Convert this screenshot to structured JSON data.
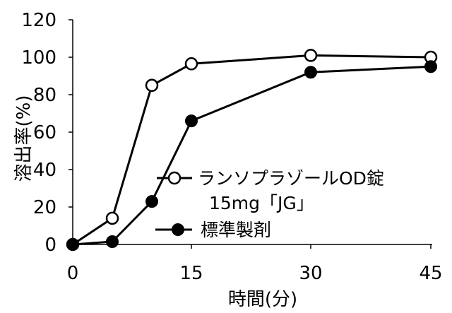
{
  "chart_data": {
    "type": "line",
    "x": [
      0,
      5,
      10,
      15,
      30,
      45
    ],
    "series": [
      {
        "name": "ランソプラゾールOD錠",
        "name_line2": "15mg「JG」",
        "marker": "open-circle",
        "values": [
          0,
          14,
          85,
          96.5,
          101,
          100
        ]
      },
      {
        "name": "標準製剤",
        "marker": "filled-circle",
        "values": [
          0,
          1.5,
          23,
          66,
          92,
          95
        ]
      }
    ],
    "xlabel": "時間(分)",
    "ylabel": "溶出率(%)",
    "xticks": [
      "0",
      "15",
      "30",
      "45"
    ],
    "xtick_values": [
      0,
      15,
      30,
      45
    ],
    "yticks": [
      "0",
      "20",
      "40",
      "60",
      "80",
      "100",
      "120"
    ],
    "ytick_values": [
      0,
      20,
      40,
      60,
      80,
      100,
      120
    ],
    "ylim": [
      0,
      120
    ],
    "xlim": [
      0,
      45
    ],
    "xscale": "category-like piecewise (0-15 compressed, 15-45 evenly spaced)",
    "grid": false,
    "legend_position": "lower-right inside plot",
    "line_color": "#000000"
  }
}
